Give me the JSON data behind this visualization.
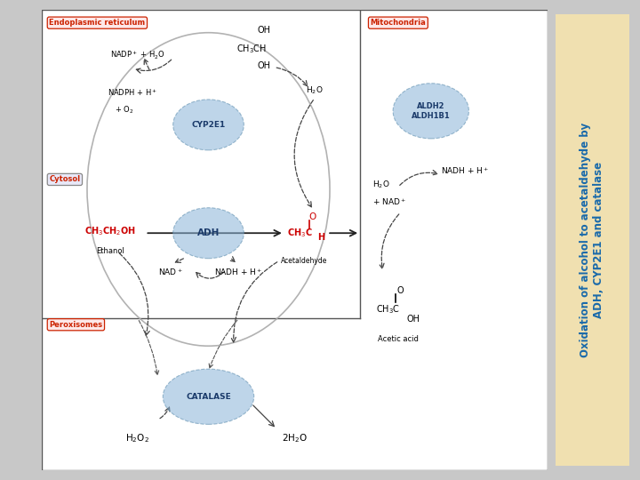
{
  "bg_color": "#c8c8c8",
  "main_bg": "#ffffff",
  "title_text_line1": "Oxidation of alcohol to acetaldehyde by",
  "title_text_line2": "ADH, CYP2E1 and catalase",
  "title_bg": "#f0e0b0",
  "title_border": "#ff00ff",
  "title_text_color": "#1a6aaa",
  "label_er": "Endoplasmic reticulum",
  "label_cyto": "Cytosol",
  "label_perox": "Peroxisomes",
  "label_mito": "Mitochondria",
  "label_red_color": "#cc2200",
  "label_blue_color": "#cc2200",
  "enzyme_cyp2e1": "CYP2E1",
  "enzyme_adh": "ADH",
  "enzyme_catalase": "CATALASE",
  "enzyme_aldh": "ALDH2\nALDH1B1",
  "enzyme_circle_color": "#8ab4d8",
  "enzyme_circle_alpha": 0.55,
  "ethanol_color": "#cc0000",
  "acetaldehyde_color": "#cc0000",
  "arrow_color": "#333333",
  "dashed_arrow_color": "#555555"
}
